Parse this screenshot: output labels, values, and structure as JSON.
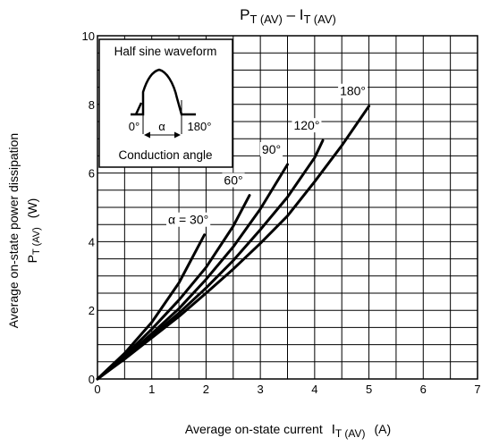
{
  "chart_data": {
    "type": "line",
    "title": {
      "main": "P",
      "sub1": "T (AV)",
      "dash": " – I",
      "sub2": "T (AV)"
    },
    "xlabel": {
      "main": "Average on-state current",
      "sym": "I",
      "sub": "T (AV)",
      "unit": "(A)"
    },
    "ylabel": {
      "line1": "Average on-state power dissipation",
      "sym": "P",
      "sub": "T (AV)",
      "unit": "(W)"
    },
    "xlim": [
      0,
      7
    ],
    "ylim": [
      0,
      10
    ],
    "xticks": [
      "0",
      "1",
      "2",
      "3",
      "4",
      "5",
      "6",
      "7"
    ],
    "yticks": [
      "0",
      "2",
      "4",
      "6",
      "8",
      "10"
    ],
    "grid": true,
    "series": [
      {
        "name": "α = 30°",
        "x": [
          0,
          0.5,
          1.0,
          1.5,
          1.97
        ],
        "y": [
          0,
          0.75,
          1.65,
          2.8,
          4.2
        ]
      },
      {
        "name": "60°",
        "x": [
          0,
          0.5,
          1.0,
          1.5,
          2.0,
          2.5,
          2.8
        ],
        "y": [
          0,
          0.68,
          1.45,
          2.3,
          3.25,
          4.45,
          5.35
        ]
      },
      {
        "name": "90°",
        "x": [
          0,
          0.5,
          1.0,
          1.5,
          2.0,
          2.5,
          3.0,
          3.5
        ],
        "y": [
          0,
          0.62,
          1.32,
          2.05,
          2.9,
          3.85,
          4.95,
          6.25
        ]
      },
      {
        "name": "120°",
        "x": [
          0,
          0.5,
          1.0,
          1.5,
          2.0,
          2.5,
          3.0,
          3.5,
          4.0,
          4.15
        ],
        "y": [
          0,
          0.6,
          1.25,
          1.92,
          2.65,
          3.45,
          4.35,
          5.3,
          6.45,
          6.95
        ]
      },
      {
        "name": "180°",
        "x": [
          0,
          0.5,
          1.0,
          1.5,
          2.0,
          2.5,
          3.0,
          3.5,
          4.0,
          4.5,
          5.0
        ],
        "y": [
          0,
          0.58,
          1.2,
          1.82,
          2.5,
          3.2,
          3.95,
          4.75,
          5.75,
          6.8,
          7.95
        ]
      }
    ],
    "inset": {
      "title": "Half sine waveform",
      "label_start": "0°",
      "label_alpha": "α",
      "label_end": "180°",
      "caption": "Conduction angle"
    }
  }
}
